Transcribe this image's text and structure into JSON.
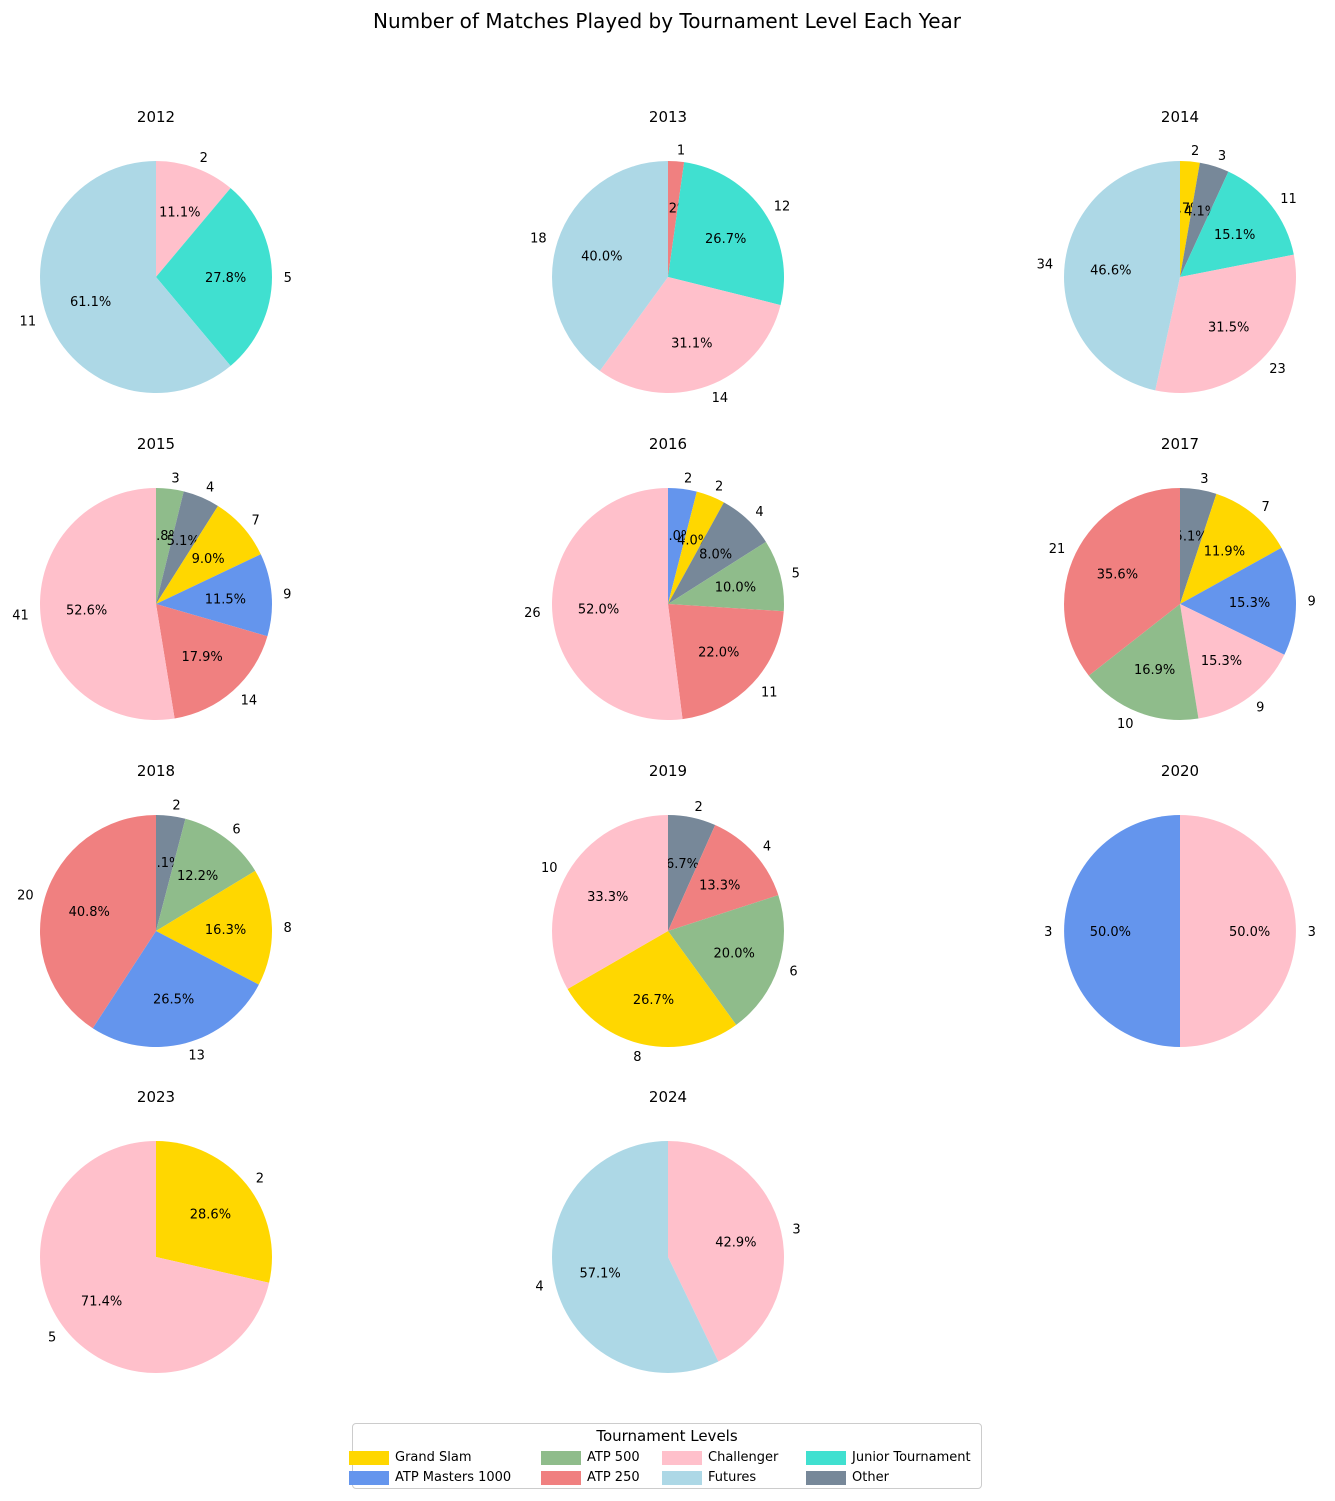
{
  "title": "Number of Matches Played by Tournament Level Each Year",
  "legend": {
    "title": "Tournament Levels",
    "items": [
      {
        "label": "Grand Slam",
        "color": "#FFD700"
      },
      {
        "label": "ATP Masters 1000",
        "color": "#6495ED"
      },
      {
        "label": "ATP 500",
        "color": "#8FBC8B"
      },
      {
        "label": "ATP 250",
        "color": "#F08080"
      },
      {
        "label": "Challenger",
        "color": "#FFC0CB"
      },
      {
        "label": "Futures",
        "color": "#ADD8E6"
      },
      {
        "label": "Junior Tournament",
        "color": "#40E0D0"
      },
      {
        "label": "Other",
        "color": "#778899"
      }
    ]
  },
  "chart_data": [
    {
      "type": "pie",
      "title": "2012",
      "slices": [
        {
          "label": "Challenger",
          "value": 2,
          "pct": "11.1%"
        },
        {
          "label": "Junior Tournament",
          "value": 5,
          "pct": "27.8%"
        },
        {
          "label": "Futures",
          "value": 11,
          "pct": "61.1%"
        }
      ]
    },
    {
      "type": "pie",
      "title": "2013",
      "slices": [
        {
          "label": "ATP 250",
          "value": 1,
          "pct": "2.2%"
        },
        {
          "label": "Junior Tournament",
          "value": 12,
          "pct": "26.7%"
        },
        {
          "label": "Challenger",
          "value": 14,
          "pct": "31.1%"
        },
        {
          "label": "Futures",
          "value": 18,
          "pct": "40.0%"
        }
      ]
    },
    {
      "type": "pie",
      "title": "2014",
      "slices": [
        {
          "label": "Grand Slam",
          "value": 2,
          "pct": "2.7%"
        },
        {
          "label": "Other",
          "value": 3,
          "pct": "4.1%"
        },
        {
          "label": "Junior Tournament",
          "value": 11,
          "pct": "15.1%"
        },
        {
          "label": "Challenger",
          "value": 23,
          "pct": "31.5%"
        },
        {
          "label": "Futures",
          "value": 34,
          "pct": "46.6%"
        }
      ]
    },
    {
      "type": "pie",
      "title": "2015",
      "slices": [
        {
          "label": "ATP 500",
          "value": 3,
          "pct": "3.8%"
        },
        {
          "label": "Other",
          "value": 4,
          "pct": "5.1%"
        },
        {
          "label": "Grand Slam",
          "value": 7,
          "pct": "9.0%"
        },
        {
          "label": "ATP Masters 1000",
          "value": 9,
          "pct": "11.5%"
        },
        {
          "label": "ATP 250",
          "value": 14,
          "pct": "17.9%"
        },
        {
          "label": "Challenger",
          "value": 41,
          "pct": "52.6%"
        }
      ]
    },
    {
      "type": "pie",
      "title": "2016",
      "slices": [
        {
          "label": "ATP Masters 1000",
          "value": 2,
          "pct": "4.0%"
        },
        {
          "label": "Grand Slam",
          "value": 2,
          "pct": "4.0%"
        },
        {
          "label": "Other",
          "value": 4,
          "pct": "8.0%"
        },
        {
          "label": "ATP 500",
          "value": 5,
          "pct": "10.0%"
        },
        {
          "label": "ATP 250",
          "value": 11,
          "pct": "22.0%"
        },
        {
          "label": "Challenger",
          "value": 26,
          "pct": "52.0%"
        }
      ]
    },
    {
      "type": "pie",
      "title": "2017",
      "slices": [
        {
          "label": "Other",
          "value": 3,
          "pct": "5.1%"
        },
        {
          "label": "Grand Slam",
          "value": 7,
          "pct": "11.9%"
        },
        {
          "label": "ATP Masters 1000",
          "value": 9,
          "pct": "15.3%"
        },
        {
          "label": "Challenger",
          "value": 9,
          "pct": "15.3%"
        },
        {
          "label": "ATP 500",
          "value": 10,
          "pct": "16.9%"
        },
        {
          "label": "ATP 250",
          "value": 21,
          "pct": "35.6%"
        }
      ]
    },
    {
      "type": "pie",
      "title": "2018",
      "slices": [
        {
          "label": "Other",
          "value": 2,
          "pct": "4.1%"
        },
        {
          "label": "ATP 500",
          "value": 6,
          "pct": "12.2%"
        },
        {
          "label": "Grand Slam",
          "value": 8,
          "pct": "16.3%"
        },
        {
          "label": "ATP Masters 1000",
          "value": 13,
          "pct": "26.5%"
        },
        {
          "label": "ATP 250",
          "value": 20,
          "pct": "40.8%"
        }
      ]
    },
    {
      "type": "pie",
      "title": "2019",
      "slices": [
        {
          "label": "Other",
          "value": 2,
          "pct": "6.7%"
        },
        {
          "label": "ATP 250",
          "value": 4,
          "pct": "13.3%"
        },
        {
          "label": "ATP 500",
          "value": 6,
          "pct": "20.0%"
        },
        {
          "label": "Grand Slam",
          "value": 8,
          "pct": "26.7%"
        },
        {
          "label": "Challenger",
          "value": 10,
          "pct": "33.3%"
        }
      ]
    },
    {
      "type": "pie",
      "title": "2020",
      "slices": [
        {
          "label": "Challenger",
          "value": 3,
          "pct": "50.0%"
        },
        {
          "label": "ATP Masters 1000",
          "value": 3,
          "pct": "50.0%"
        }
      ]
    },
    {
      "type": "pie",
      "title": "2023",
      "slices": [
        {
          "label": "Grand Slam",
          "value": 2,
          "pct": "28.6%"
        },
        {
          "label": "Challenger",
          "value": 5,
          "pct": "71.4%"
        }
      ]
    },
    {
      "type": "pie",
      "title": "2024",
      "slices": [
        {
          "label": "Challenger",
          "value": 3,
          "pct": "42.9%"
        },
        {
          "label": "Futures",
          "value": 4,
          "pct": "57.1%"
        }
      ]
    }
  ]
}
